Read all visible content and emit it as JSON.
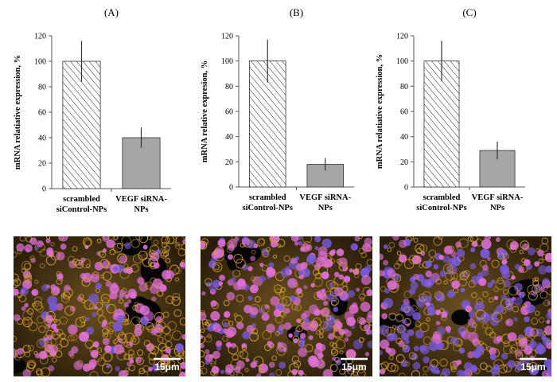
{
  "chart_data": [
    {
      "type": "bar",
      "title": "(A)",
      "y_label": "mRNA relatiative expression, %",
      "categories": [
        [
          "scrambled",
          "siControl-NPs"
        ],
        [
          "VEGF siRNA-",
          "NPs"
        ]
      ],
      "values": [
        100,
        40
      ],
      "errors": [
        16,
        8
      ],
      "patterns": [
        "hatch",
        "solid"
      ],
      "colors": [
        "#ffffff",
        "#a6a6a6"
      ],
      "ylim": [
        0,
        120
      ],
      "yticks": [
        0,
        20,
        40,
        60,
        80,
        100,
        120
      ]
    },
    {
      "type": "bar",
      "title": "(B)",
      "y_label": "mRNA relative expresion, %",
      "categories": [
        [
          "scrambled",
          "siControl-NPs"
        ],
        [
          "VEGF siRNA-",
          "NPs"
        ]
      ],
      "values": [
        100,
        18
      ],
      "errors": [
        17,
        5
      ],
      "patterns": [
        "hatch",
        "solid"
      ],
      "colors": [
        "#ffffff",
        "#a6a6a6"
      ],
      "ylim": [
        0,
        120
      ],
      "yticks": [
        0,
        20,
        40,
        60,
        80,
        100,
        120
      ]
    },
    {
      "type": "bar",
      "title": "(C)",
      "y_label": "mRNA relatiative expression, %",
      "categories": [
        [
          "scrambled",
          "siControl-NPs"
        ],
        [
          "VEGF siRNA-",
          "NPs"
        ]
      ],
      "values": [
        100,
        29
      ],
      "errors": [
        16,
        7
      ],
      "patterns": [
        "hatch",
        "solid"
      ],
      "colors": [
        "#ffffff",
        "#a6a6a6"
      ],
      "ylim": [
        0,
        120
      ],
      "yticks": [
        0,
        20,
        40,
        60,
        80,
        100,
        120
      ]
    }
  ],
  "micrographs": [
    {
      "scale_bar": "15μm"
    },
    {
      "scale_bar": "15μm"
    },
    {
      "scale_bar": "15μm"
    }
  ]
}
